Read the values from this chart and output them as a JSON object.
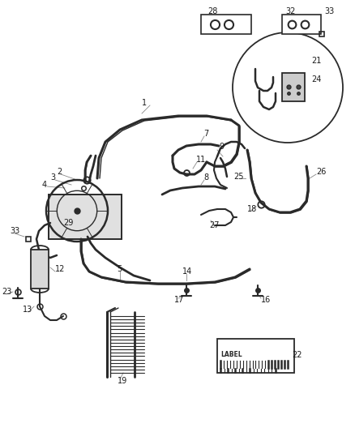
{
  "bg_color": "#ffffff",
  "line_color": "#2a2a2a",
  "label_color": "#1a1a1a",
  "leader_color": "#888888",
  "figsize": [
    4.38,
    5.33
  ],
  "dpi": 100
}
